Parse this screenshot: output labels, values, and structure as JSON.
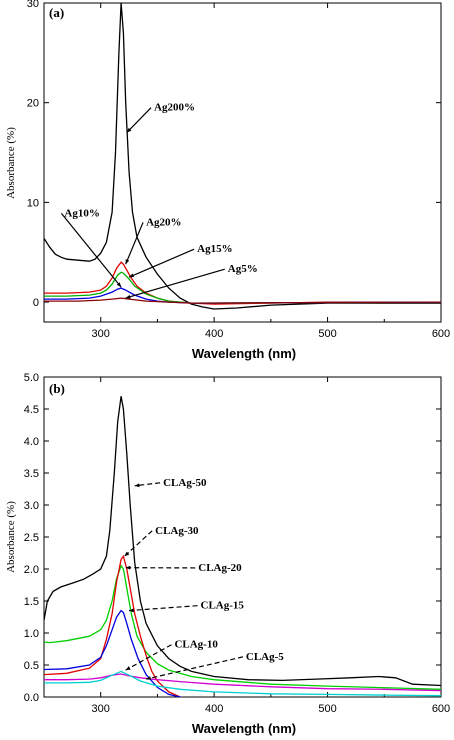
{
  "chart_data": [
    {
      "type": "line",
      "panel_label": "(a)",
      "xlabel": "Wavelength (nm)",
      "ylabel": "Absorbance (%)",
      "xlim": [
        250,
        600
      ],
      "ylim": [
        -2,
        30
      ],
      "xticks": [
        300,
        400,
        500,
        600
      ],
      "yticks": [
        0,
        10,
        20,
        30
      ],
      "series": [
        {
          "name": "Ag200%",
          "color": "#000000",
          "label_color": "#000000",
          "x": [
            250,
            255,
            260,
            265,
            270,
            280,
            290,
            295,
            300,
            305,
            310,
            313,
            316,
            318,
            320,
            322,
            325,
            328,
            332,
            340,
            350,
            360,
            370,
            380,
            390,
            400,
            420,
            450,
            500,
            550,
            600
          ],
          "y": [
            6.4,
            5.5,
            4.8,
            4.5,
            4.3,
            4.2,
            4.1,
            4.3,
            4.9,
            6.0,
            9.0,
            15.0,
            25.0,
            30.0,
            27.0,
            20.0,
            13.0,
            9.0,
            6.5,
            4.5,
            2.8,
            1.4,
            0.4,
            -0.2,
            -0.5,
            -0.7,
            -0.6,
            -0.3,
            -0.1,
            -0.1,
            -0.1
          ]
        },
        {
          "name": "Ag20%",
          "color": "#e00000",
          "label_color": "#000000",
          "x": [
            250,
            270,
            290,
            300,
            305,
            310,
            314,
            318,
            320,
            323,
            327,
            332,
            340,
            350,
            360,
            380,
            400,
            450,
            500,
            600
          ],
          "y": [
            0.9,
            0.9,
            1.0,
            1.2,
            1.6,
            2.4,
            3.4,
            4.0,
            3.8,
            3.2,
            2.4,
            1.6,
            0.9,
            0.4,
            0.1,
            -0.1,
            -0.2,
            -0.1,
            0,
            0
          ]
        },
        {
          "name": "Ag15%",
          "color": "#00b000",
          "label_color": "#000000",
          "x": [
            250,
            270,
            290,
            300,
            305,
            310,
            315,
            318,
            320,
            325,
            330,
            340,
            350,
            360,
            380,
            400,
            600
          ],
          "y": [
            0.6,
            0.6,
            0.7,
            0.9,
            1.2,
            1.8,
            2.7,
            3.0,
            2.9,
            2.3,
            1.6,
            0.8,
            0.4,
            0.1,
            -0.1,
            -0.1,
            0
          ]
        },
        {
          "name": "Ag10%",
          "color": "#0000e0",
          "label_color": "#000000",
          "x": [
            250,
            270,
            290,
            300,
            310,
            315,
            318,
            322,
            330,
            340,
            350,
            360,
            380,
            600
          ],
          "y": [
            0.3,
            0.3,
            0.4,
            0.6,
            1.0,
            1.3,
            1.4,
            1.2,
            0.7,
            0.3,
            0.1,
            0,
            -0.1,
            0
          ]
        },
        {
          "name": "Ag5%",
          "color": "#8b0000",
          "label_color": "#000000",
          "x": [
            250,
            280,
            300,
            310,
            318,
            325,
            340,
            360,
            380,
            600
          ],
          "y": [
            0.1,
            0.1,
            0.2,
            0.3,
            0.4,
            0.3,
            0.1,
            0,
            -0.1,
            0
          ]
        }
      ],
      "annotations": [
        {
          "text": "Ag200%",
          "x": 347,
          "y": 19.2,
          "lx": 323,
          "ly": 17.0
        },
        {
          "text": "Ag10%",
          "x": 268,
          "y": 8.6,
          "lx": 318,
          "ly": 1.5
        },
        {
          "text": "Ag20%",
          "x": 340,
          "y": 7.7,
          "lx": 322,
          "ly": 3.8
        },
        {
          "text": "Ag15%",
          "x": 385,
          "y": 5.0,
          "lx": 325,
          "ly": 2.5
        },
        {
          "text": "Ag5%",
          "x": 412,
          "y": 3.0,
          "lx": 322,
          "ly": 0.4
        }
      ]
    },
    {
      "type": "line",
      "panel_label": "(b)",
      "xlabel": "Wavelength (nm)",
      "ylabel": "Absorbance (%)",
      "xlim": [
        250,
        600
      ],
      "ylim": [
        0,
        5
      ],
      "xticks": [
        300,
        400,
        500,
        600
      ],
      "yticks": [
        0.0,
        0.5,
        1.0,
        1.5,
        2.0,
        2.5,
        3.0,
        3.5,
        4.0,
        4.5,
        5.0
      ],
      "series": [
        {
          "name": "CLAg-50",
          "color": "#000000",
          "label_color": "#000000",
          "x": [
            250,
            253,
            258,
            265,
            275,
            285,
            293,
            300,
            305,
            308,
            312,
            315,
            318,
            320,
            323,
            326,
            330,
            335,
            340,
            350,
            360,
            370,
            380,
            400,
            430,
            460,
            490,
            520,
            545,
            560,
            575,
            600
          ],
          "y": [
            1.2,
            1.5,
            1.65,
            1.72,
            1.78,
            1.84,
            1.92,
            2.0,
            2.2,
            2.6,
            3.5,
            4.3,
            4.7,
            4.5,
            3.8,
            3.0,
            2.1,
            1.5,
            1.15,
            0.8,
            0.6,
            0.48,
            0.4,
            0.32,
            0.27,
            0.26,
            0.28,
            0.3,
            0.32,
            0.3,
            0.2,
            0.18
          ]
        },
        {
          "name": "CLAg-20",
          "color": "#00d000",
          "label_color": "#000000",
          "x": [
            250,
            255,
            270,
            290,
            300,
            305,
            310,
            314,
            318,
            320,
            323,
            327,
            332,
            340,
            350,
            360,
            380,
            400,
            450,
            500,
            600
          ],
          "y": [
            0.86,
            0.85,
            0.88,
            0.95,
            1.05,
            1.2,
            1.5,
            1.85,
            2.05,
            2.0,
            1.7,
            1.3,
            0.95,
            0.7,
            0.52,
            0.42,
            0.32,
            0.27,
            0.2,
            0.17,
            0.12
          ]
        },
        {
          "name": "CLAg-30",
          "color": "#e00000",
          "label_color": "#000000",
          "x": [
            250,
            270,
            290,
            300,
            305,
            310,
            314,
            318,
            320,
            323,
            326,
            330,
            335,
            340,
            345,
            350,
            360,
            370,
            380
          ],
          "y": [
            0.35,
            0.37,
            0.45,
            0.6,
            0.9,
            1.3,
            1.8,
            2.15,
            2.2,
            2.0,
            1.7,
            1.3,
            0.95,
            0.65,
            0.4,
            0.25,
            0.08,
            0.0,
            -0.05
          ]
        },
        {
          "name": "CLAg-15",
          "color": "#0000e0",
          "label_color": "#000000",
          "x": [
            250,
            270,
            290,
            300,
            305,
            310,
            314,
            318,
            320,
            323,
            327,
            333,
            340,
            350,
            360,
            370,
            380
          ],
          "y": [
            0.43,
            0.44,
            0.5,
            0.62,
            0.8,
            1.05,
            1.25,
            1.35,
            1.32,
            1.15,
            0.9,
            0.6,
            0.35,
            0.15,
            0.04,
            0.0,
            -0.05
          ]
        },
        {
          "name": "CLAg-10",
          "color": "#d000d0",
          "label_color": "#000000",
          "x": [
            250,
            270,
            290,
            300,
            310,
            318,
            325,
            335,
            350,
            370,
            400,
            450,
            500,
            550,
            600
          ],
          "y": [
            0.27,
            0.27,
            0.28,
            0.3,
            0.34,
            0.36,
            0.33,
            0.3,
            0.27,
            0.24,
            0.2,
            0.16,
            0.13,
            0.12,
            0.1
          ]
        },
        {
          "name": "CLAg-5",
          "color": "#00d0d0",
          "label_color": "#000000",
          "x": [
            250,
            270,
            290,
            300,
            310,
            318,
            325,
            335,
            350,
            370,
            400,
            450,
            500,
            550,
            600
          ],
          "y": [
            0.22,
            0.22,
            0.23,
            0.26,
            0.34,
            0.4,
            0.34,
            0.25,
            0.17,
            0.12,
            0.08,
            0.05,
            0.04,
            0.03,
            0.02
          ]
        }
      ],
      "annotations": [
        {
          "text": "CLAg-50",
          "x": 355,
          "y": 3.3,
          "lx": 330,
          "ly": 3.3,
          "dash": true
        },
        {
          "text": "CLAg-30",
          "x": 348,
          "y": 2.55,
          "lx": 321,
          "ly": 2.2,
          "dash": true
        },
        {
          "text": "CLAg-20",
          "x": 386,
          "y": 1.97,
          "lx": 322,
          "ly": 2.02,
          "dash": true
        },
        {
          "text": "CLAg-15",
          "x": 388,
          "y": 1.38,
          "lx": 325,
          "ly": 1.35,
          "dash": true
        },
        {
          "text": "CLAg-10",
          "x": 365,
          "y": 0.77,
          "lx": 322,
          "ly": 0.42,
          "dash": true
        },
        {
          "text": "CLAg-5",
          "x": 428,
          "y": 0.58,
          "lx": 340,
          "ly": 0.28,
          "dash": true
        }
      ]
    }
  ]
}
